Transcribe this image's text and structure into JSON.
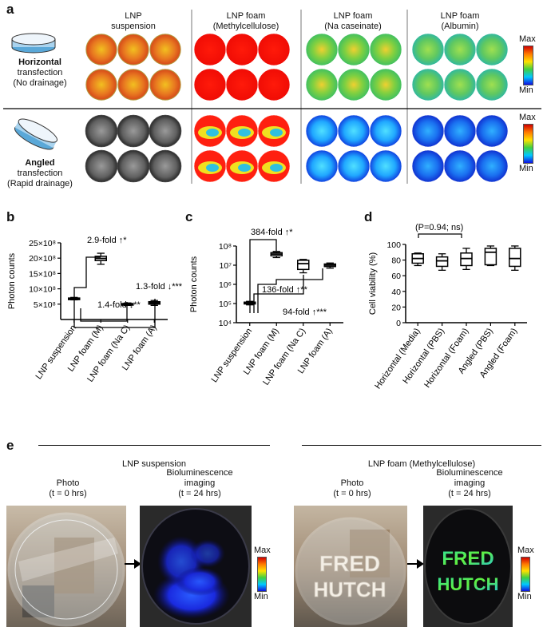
{
  "panel_a": {
    "label": "a",
    "columns": [
      {
        "line1": "LNP",
        "line2": "suspension"
      },
      {
        "line1": "LNP foam",
        "line2": "(Methylcellulose)"
      },
      {
        "line1": "LNP foam",
        "line2": "(Na caseinate)"
      },
      {
        "line1": "LNP foam",
        "line2": "(Albumin)"
      }
    ],
    "rows": [
      {
        "bold": "Horizontal",
        "line2": "transfection",
        "line3": "(No drainage)"
      },
      {
        "bold": "Angled",
        "line2": "transfection",
        "line3": "(Rapid drainage)"
      }
    ],
    "scale_max": "Max",
    "scale_min": "Min"
  },
  "panel_b": {
    "label": "b",
    "ylabel": "Photon counts",
    "yticks": [
      "5×10⁸",
      "10×10⁸",
      "15×10⁸",
      "20×10⁸",
      "25×10⁸"
    ],
    "categories": [
      "LNP suspension",
      "LNP foam (M)",
      "LNP foam (Na C)",
      "LNP foam (A)"
    ],
    "annotations": [
      {
        "text": "2.9-fold",
        "arrow": "↑",
        "sig": "*"
      },
      {
        "text": "1.4-fold",
        "arrow": "↓",
        "sig": "**"
      },
      {
        "text": "1.3-fold",
        "arrow": "↓",
        "sig": "***"
      }
    ]
  },
  "panel_c": {
    "label": "c",
    "ylabel": "Photon counts",
    "yticks": [
      "10⁴",
      "10⁵",
      "10⁶",
      "10⁷",
      "10⁸"
    ],
    "categories": [
      "LNP suspension",
      "LNP foam (M)",
      "LNP foam (Na C)",
      "LNP foam (A)"
    ],
    "annotations": [
      {
        "text": "384-fold",
        "arrow": "↑",
        "sig": "*"
      },
      {
        "text": "136-fold",
        "arrow": "↑",
        "sig": "**"
      },
      {
        "text": "94-fold",
        "arrow": "↑",
        "sig": "***"
      }
    ]
  },
  "panel_d": {
    "label": "d",
    "ylabel": "Cell viability (%)",
    "yticks": [
      "0",
      "20",
      "40",
      "60",
      "80",
      "100"
    ],
    "categories": [
      "Horizontal (Media)",
      "Horizontal (PBS)",
      "Horizontal (Foam)",
      "Angled (PBS)",
      "Angled (Foam)"
    ],
    "annotation": "(P=0.94; ns)"
  },
  "panel_e": {
    "label": "e",
    "groups": [
      {
        "title": "LNP suspension",
        "photo_l1": "Photo",
        "photo_l2": "(t = 0 hrs)",
        "bli_l1": "Bioluminescence",
        "bli_l2": "imaging",
        "bli_l3": "(t = 24 hrs)"
      },
      {
        "title": "LNP foam  (Methylcellulose)",
        "photo_l1": "Photo",
        "photo_l2": "(t = 0 hrs)",
        "bli_l1": "Bioluminescence",
        "bli_l2": "imaging",
        "bli_l3": "(t = 24 hrs)"
      }
    ],
    "photo_text_l1": "FRED",
    "photo_text_l2": "HUTCH",
    "scale_max": "Max",
    "scale_min": "Min"
  },
  "chart_data": [
    {
      "panel": "b",
      "type": "box",
      "categories": [
        "LNP suspension",
        "LNP foam (M)",
        "LNP foam (Na C)",
        "LNP foam (A)"
      ],
      "ylim": [
        0,
        2500000000
      ],
      "boxes": [
        {
          "min": 640000000,
          "q1": 660000000,
          "median": 680000000,
          "q3": 700000000,
          "max": 720000000
        },
        {
          "min": 1800000000,
          "q1": 1920000000,
          "median": 1990000000,
          "q3": 2060000000,
          "max": 2160000000
        },
        {
          "min": 460000000,
          "q1": 480000000,
          "median": 500000000,
          "q3": 520000000,
          "max": 540000000
        },
        {
          "min": 460000000,
          "q1": 500000000,
          "median": 540000000,
          "q3": 580000000,
          "max": 620000000
        }
      ]
    },
    {
      "panel": "c",
      "type": "box",
      "yscale": "log",
      "categories": [
        "LNP suspension",
        "LNP foam (M)",
        "LNP foam (Na C)",
        "LNP foam (A)"
      ],
      "ylim": [
        10000,
        100000000
      ],
      "boxes": [
        {
          "min": 85000,
          "q1": 95000,
          "median": 105000,
          "q3": 118000,
          "max": 130000
        },
        {
          "min": 25000000,
          "q1": 31000000,
          "median": 38000000,
          "q3": 45000000,
          "max": 52000000
        },
        {
          "min": 4000000,
          "q1": 6000000,
          "median": 12000000,
          "q3": 18000000,
          "max": 20000000
        },
        {
          "min": 7000000,
          "q1": 8500000,
          "median": 10000000,
          "q3": 11500000,
          "max": 13000000
        }
      ]
    },
    {
      "panel": "d",
      "type": "box",
      "categories": [
        "Horizontal (Media)",
        "Horizontal (PBS)",
        "Horizontal (Foam)",
        "Angled (PBS)",
        "Angled (Foam)"
      ],
      "ylim": [
        0,
        100
      ],
      "boxes": [
        {
          "min": 73,
          "q1": 76,
          "median": 82,
          "q3": 88,
          "max": 89
        },
        {
          "min": 67,
          "q1": 72,
          "median": 79,
          "q3": 84,
          "max": 88
        },
        {
          "min": 68,
          "q1": 73,
          "median": 82,
          "q3": 89,
          "max": 95
        },
        {
          "min": 73,
          "q1": 74,
          "median": 90,
          "q3": 95,
          "max": 98
        },
        {
          "min": 67,
          "q1": 72,
          "median": 82,
          "q3": 95,
          "max": 98
        }
      ]
    }
  ]
}
